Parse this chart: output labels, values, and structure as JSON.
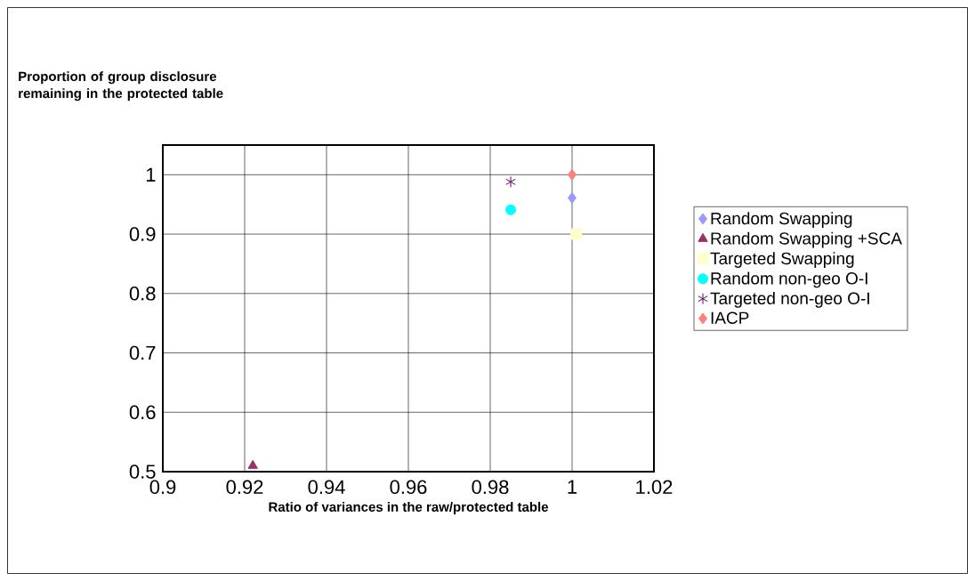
{
  "chart_data": {
    "type": "scatter",
    "annotations": [
      "Proportion of group disclosure remaining in the protected table"
    ],
    "xlabel": "Ratio of variances in the raw/protected table",
    "xlim": [
      0.9,
      1.02
    ],
    "xticks": [
      0.9,
      0.92,
      0.94,
      0.96,
      0.98,
      1,
      1.02
    ],
    "ylim": [
      0.5,
      1.05
    ],
    "yticks": [
      0.5,
      0.6,
      0.7,
      0.8,
      0.9,
      1
    ],
    "grid": true,
    "legend": "right",
    "series": [
      {
        "name": "Random Swapping",
        "color": "#9999ff",
        "marker": "diamond",
        "x": [
          1.0
        ],
        "values": [
          0.961
        ]
      },
      {
        "name": "Random Swapping +SCA",
        "color": "#993366",
        "marker": "triangle",
        "x": [
          0.922
        ],
        "values": [
          0.51
        ]
      },
      {
        "name": "Targeted Swapping",
        "color": "#ffffcc",
        "marker": "square",
        "x": [
          1.001
        ],
        "values": [
          0.9
        ]
      },
      {
        "name": "Random non-geo O-I",
        "color": "#00ffff",
        "marker": "circle",
        "x": [
          0.985
        ],
        "values": [
          0.941
        ]
      },
      {
        "name": "Targeted non-geo O-I",
        "color": "#660066",
        "marker": "cross",
        "x": [
          0.985
        ],
        "values": [
          0.988
        ]
      },
      {
        "name": "IACP",
        "color": "#ff8080",
        "marker": "diamond",
        "x": [
          1.0
        ],
        "values": [
          1.0
        ]
      }
    ]
  }
}
